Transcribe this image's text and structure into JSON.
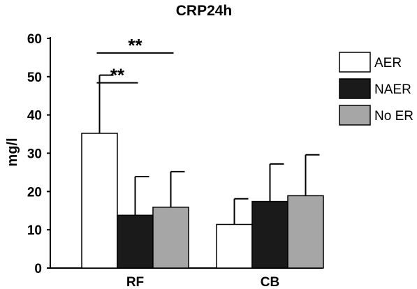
{
  "chart_data": {
    "type": "bar",
    "title": "CRP24h",
    "xlabel": "",
    "ylabel": "mg/l",
    "ylim": [
      0,
      60
    ],
    "yticks": [
      0,
      10,
      20,
      30,
      40,
      50,
      60
    ],
    "categories": [
      "RF",
      "CB"
    ],
    "series": [
      {
        "name": "AER",
        "values": [
          35.2,
          11.4
        ],
        "errors": [
          15.2,
          6.7
        ],
        "color": "#ffffff"
      },
      {
        "name": "NAER",
        "values": [
          13.8,
          17.4
        ],
        "errors": [
          10.1,
          9.8
        ],
        "color": "#1a1a1a"
      },
      {
        "name": "No ER",
        "values": [
          15.9,
          18.9
        ],
        "errors": [
          9.3,
          10.7
        ],
        "color": "#a6a6a6"
      }
    ],
    "legend_position": "top-right",
    "grid": false,
    "significance": [
      {
        "label": "**",
        "category": "RF",
        "from": "AER",
        "to": "NAER"
      },
      {
        "label": "**",
        "category": "RF",
        "from": "AER",
        "to": "No ER"
      }
    ]
  }
}
